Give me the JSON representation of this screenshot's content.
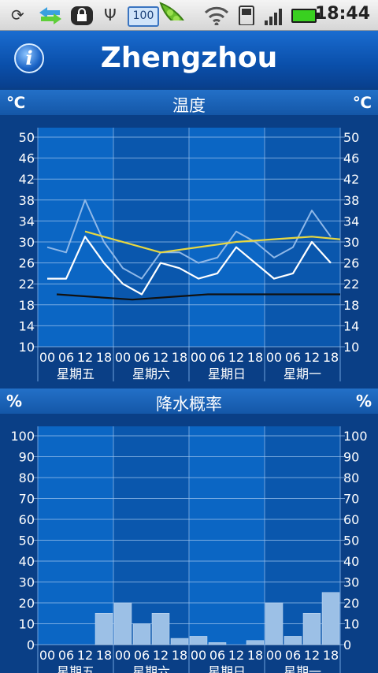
{
  "status_bar": {
    "battery_level": "100",
    "clock": "18:44",
    "icons": [
      "sync-icon",
      "transfer-icon",
      "lock-icon",
      "usb-icon",
      "battery-badge-icon",
      "pea-pod-icon",
      "wifi-icon",
      "phone-icon",
      "signal-icon",
      "battery-icon"
    ]
  },
  "header": {
    "city": "Zhengzhou",
    "info_icon": "info-icon"
  },
  "temperature_panel": {
    "title": "温度",
    "unit_left": "℃",
    "unit_right": "℃"
  },
  "precip_panel": {
    "title": "降水概率",
    "unit_left": "%",
    "unit_right": "%"
  },
  "colors": {
    "bg": "#0a3f86",
    "line_light": "#8fb8e8",
    "line_white": "#ffffff",
    "line_yellow": "#e8d840",
    "line_black": "#111111",
    "bar": "#9cc0e6"
  },
  "chart_data": [
    {
      "type": "line",
      "title": "温度",
      "ylabel": "℃",
      "yticks": [
        10,
        14,
        18,
        22,
        26,
        30,
        34,
        38,
        42,
        46,
        50
      ],
      "ylim": [
        10,
        50
      ],
      "hour_labels": [
        "00",
        "06",
        "12",
        "18"
      ],
      "days": [
        "星期五",
        "星期六",
        "星期日",
        "星期一"
      ],
      "x": [
        0,
        1,
        2,
        3,
        4,
        5,
        6,
        7,
        8,
        9,
        10,
        11,
        12,
        13,
        14,
        15
      ],
      "series": [
        {
          "key": "light",
          "values": [
            29,
            28,
            38,
            30,
            25,
            23,
            28,
            28,
            26,
            27,
            32,
            30,
            27,
            29,
            36,
            31
          ]
        },
        {
          "key": "white",
          "values": [
            23,
            23,
            31,
            26,
            22,
            20,
            26,
            25,
            23,
            24,
            29,
            26,
            23,
            24,
            30,
            26
          ]
        },
        {
          "key": "yellow",
          "x": [
            2,
            6,
            10,
            14,
            15.5
          ],
          "values": [
            32,
            28,
            30,
            31,
            30.5
          ]
        },
        {
          "key": "black",
          "x": [
            0.5,
            4.5,
            8.5,
            12.5,
            15.5
          ],
          "values": [
            20,
            19,
            20,
            20,
            20
          ]
        }
      ]
    },
    {
      "type": "bar",
      "title": "降水概率",
      "ylabel": "%",
      "yticks": [
        0,
        10,
        20,
        30,
        40,
        50,
        60,
        70,
        80,
        90,
        100
      ],
      "ylim": [
        0,
        100
      ],
      "hour_labels": [
        "00",
        "06",
        "12",
        "18"
      ],
      "days": [
        "星期五",
        "星期六",
        "星期日",
        "星期一"
      ],
      "values": [
        0,
        0,
        0,
        15,
        20,
        10,
        15,
        3,
        4,
        1,
        0,
        2,
        20,
        4,
        15,
        25
      ]
    }
  ]
}
